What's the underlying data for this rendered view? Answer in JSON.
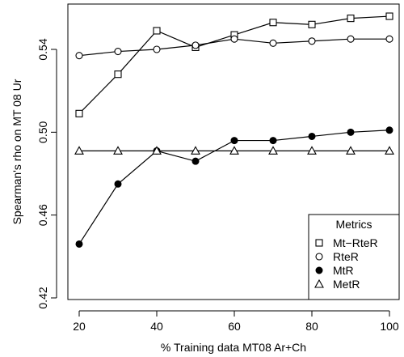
{
  "chart_data": {
    "type": "line",
    "xlabel": "% Training data MT08 Ar+Ch",
    "ylabel": "Spearman's rho on MT 08 Ur",
    "x": [
      20,
      30,
      40,
      50,
      60,
      70,
      80,
      90,
      100
    ],
    "xlim": [
      20,
      100
    ],
    "ylim": [
      0.42,
      0.56
    ],
    "xticks": [
      20,
      40,
      60,
      80,
      100
    ],
    "yticks": [
      0.42,
      0.46,
      0.5,
      0.54
    ],
    "ytick_labels": [
      "0.42",
      "0.46",
      "0.50",
      "0.54"
    ],
    "legend": {
      "title": "Metrics",
      "placement": "bottom-right"
    },
    "series": [
      {
        "name": "Mt−RteR",
        "marker": "square",
        "values": [
          0.509,
          0.528,
          0.549,
          0.541,
          0.547,
          0.553,
          0.552,
          0.555,
          0.556
        ]
      },
      {
        "name": "RteR",
        "marker": "circle-open",
        "values": [
          0.537,
          0.539,
          0.54,
          0.542,
          0.545,
          0.543,
          0.544,
          0.545,
          0.545
        ]
      },
      {
        "name": "MtR",
        "marker": "circle-filled",
        "values": [
          0.446,
          0.475,
          0.491,
          0.486,
          0.496,
          0.496,
          0.498,
          0.5,
          0.501
        ]
      },
      {
        "name": "MetR",
        "marker": "triangle",
        "values": [
          0.491,
          0.491,
          0.491,
          0.491,
          0.491,
          0.491,
          0.491,
          0.491,
          0.491
        ]
      }
    ]
  }
}
